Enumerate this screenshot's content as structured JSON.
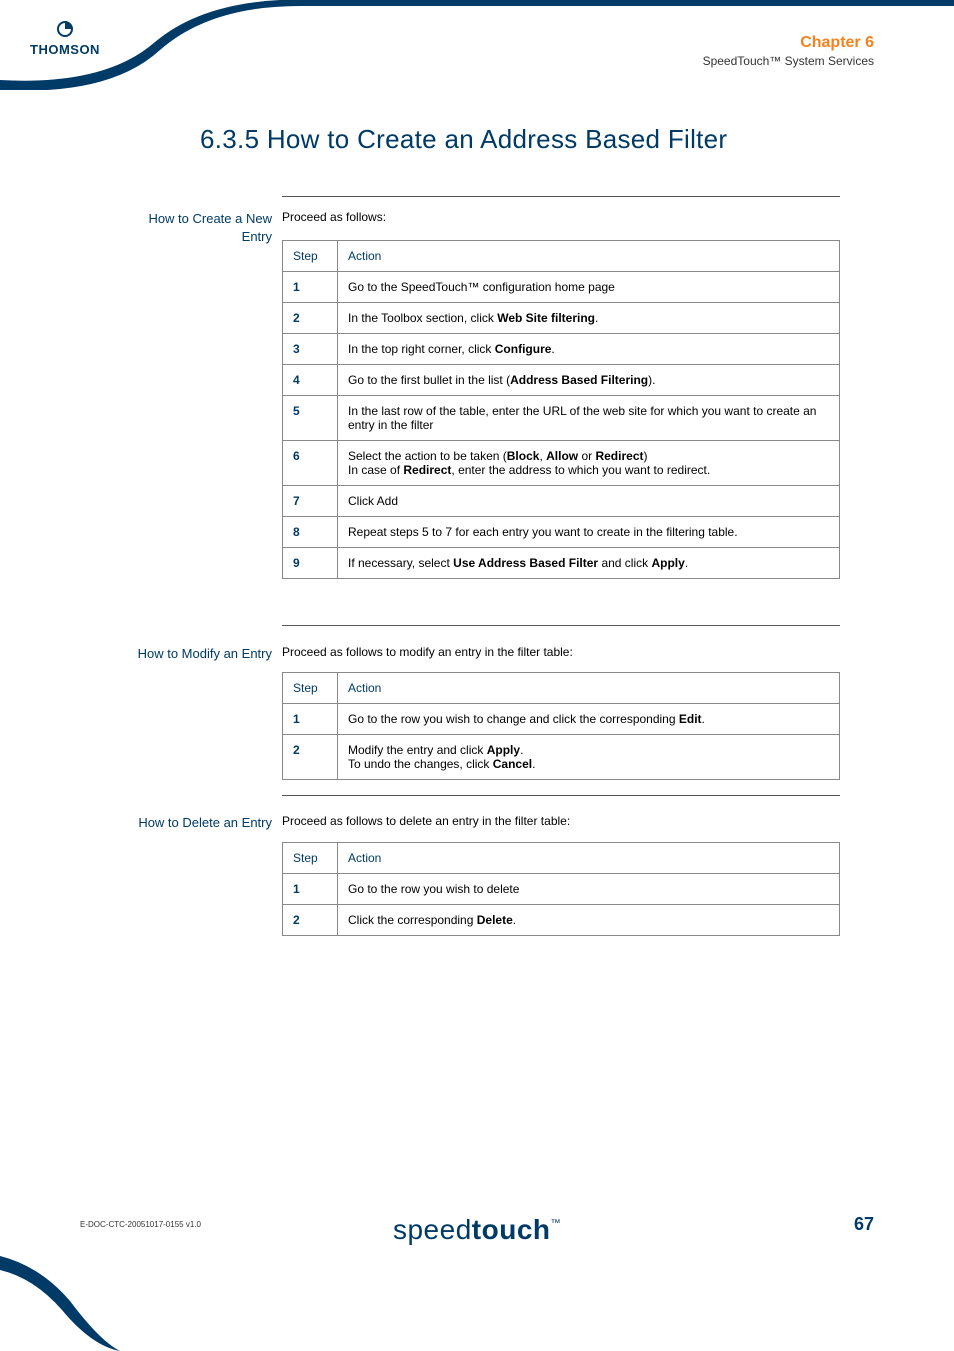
{
  "header": {
    "brand_top": "◔",
    "brand_name": "THOMSON",
    "chapter_label": "Chapter 6",
    "chapter_subtitle": "SpeedTouch™ System Services"
  },
  "title": "6.3.5  How to Create an Address Based Filter",
  "section_create": {
    "label": "How to Create a New\nEntry",
    "intro": "Proceed as follows:",
    "header_step": "Step",
    "header_action": "Action",
    "rows": [
      {
        "n": "1",
        "html": "Go to the SpeedTouch™ configuration home page"
      },
      {
        "n": "2",
        "html": "In the Toolbox section, click <b>Web Site filtering</b>."
      },
      {
        "n": "3",
        "html": "In the top right corner, click <b>Configure</b>."
      },
      {
        "n": "4",
        "html": "Go to the first bullet in the list (<b>Address Based Filtering</b>)."
      },
      {
        "n": "5",
        "html": "In the last row of the table, enter the URL of the web site for which you want to create an entry in the filter"
      },
      {
        "n": "6",
        "html": "Select the action to be taken (<b>Block</b>, <b>Allow</b> or <b>Redirect</b>)<br>In case of <b>Redirect</b>, enter the address to which you want to redirect."
      },
      {
        "n": "7",
        "html": "Click Add"
      },
      {
        "n": "8",
        "html": "Repeat steps 5 to 7 for each entry you want to create in the filtering table."
      },
      {
        "n": "9",
        "html": "If necessary, select <b>Use Address Based Filter</b> and click <b>Apply</b>."
      }
    ]
  },
  "section_modify": {
    "label": "How to Modify an Entry",
    "intro": "Proceed as follows to modify an entry in the filter table:",
    "header_step": "Step",
    "header_action": "Action",
    "rows": [
      {
        "n": "1",
        "html": "Go to the row you wish to change and click the corresponding <b>Edit</b>."
      },
      {
        "n": "2",
        "html": "Modify the entry and click <b>Apply</b>.<br>To undo the changes, click <b>Cancel</b>."
      }
    ]
  },
  "section_delete": {
    "label": "How to Delete an Entry",
    "intro": "Proceed as follows to delete an entry in the filter table:",
    "header_step": "Step",
    "header_action": "Action",
    "rows": [
      {
        "n": "1",
        "html": "Go to the row you wish to delete"
      },
      {
        "n": "2",
        "html": "Click the corresponding <b>Delete</b>."
      }
    ]
  },
  "footer": {
    "doc_id": "E-DOC-CTC-20051017-0155 v1.0",
    "logo_thin": "speed",
    "logo_bold": "touch",
    "logo_tm": "™",
    "page_number": "67"
  },
  "colors": {
    "brand_blue": "#003a66",
    "accent_orange": "#f58220",
    "text": "#000000",
    "border": "#888888"
  }
}
